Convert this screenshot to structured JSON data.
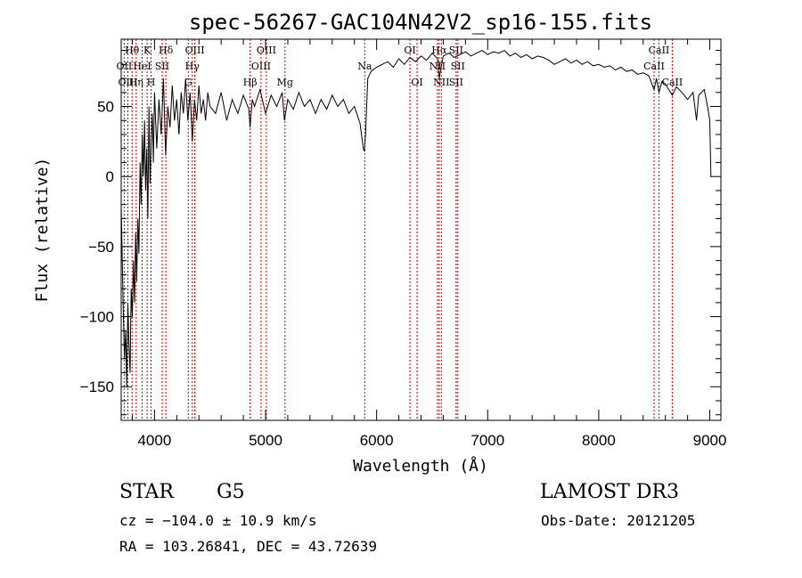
{
  "chart_data": {
    "type": "line",
    "title": "spec-56267-GAC104N42V2_sp16-155.fits",
    "xlabel": "Wavelength (Å)",
    "ylabel": "Flux (relative)",
    "xlim": [
      3700,
      9100
    ],
    "ylim": [
      -174,
      98
    ],
    "x_ticks": [
      4000,
      5000,
      6000,
      7000,
      8000,
      9000
    ],
    "y_ticks": [
      -150,
      -100,
      -50,
      0,
      50
    ],
    "y_tick_labels": [
      "−150",
      "−100",
      "−50",
      "0",
      "50"
    ],
    "series": [
      {
        "name": "flux",
        "points": [
          [
            3700,
            -20
          ],
          [
            3710,
            -60
          ],
          [
            3720,
            -100
          ],
          [
            3730,
            -130
          ],
          [
            3740,
            -110
          ],
          [
            3750,
            -150
          ],
          [
            3760,
            -90
          ],
          [
            3770,
            -120
          ],
          [
            3780,
            -140
          ],
          [
            3790,
            -80
          ],
          [
            3800,
            -100
          ],
          [
            3810,
            -60
          ],
          [
            3820,
            -90
          ],
          [
            3830,
            -40
          ],
          [
            3840,
            -75
          ],
          [
            3850,
            -30
          ],
          [
            3860,
            -55
          ],
          [
            3870,
            10
          ],
          [
            3880,
            -20
          ],
          [
            3890,
            30
          ],
          [
            3900,
            0
          ],
          [
            3910,
            40
          ],
          [
            3920,
            -10
          ],
          [
            3930,
            20
          ],
          [
            3940,
            -30
          ],
          [
            3950,
            50
          ],
          [
            3960,
            -5
          ],
          [
            3970,
            25
          ],
          [
            3980,
            45
          ],
          [
            3990,
            10
          ],
          [
            4000,
            60
          ],
          [
            4020,
            20
          ],
          [
            4040,
            55
          ],
          [
            4060,
            30
          ],
          [
            4080,
            70
          ],
          [
            4100,
            15
          ],
          [
            4120,
            50
          ],
          [
            4140,
            35
          ],
          [
            4160,
            65
          ],
          [
            4180,
            40
          ],
          [
            4200,
            55
          ],
          [
            4220,
            30
          ],
          [
            4240,
            60
          ],
          [
            4260,
            45
          ],
          [
            4280,
            70
          ],
          [
            4300,
            40
          ],
          [
            4320,
            60
          ],
          [
            4340,
            25
          ],
          [
            4360,
            55
          ],
          [
            4380,
            40
          ],
          [
            4400,
            65
          ],
          [
            4420,
            45
          ],
          [
            4440,
            55
          ],
          [
            4460,
            40
          ],
          [
            4480,
            60
          ],
          [
            4500,
            50
          ],
          [
            4550,
            45
          ],
          [
            4600,
            60
          ],
          [
            4650,
            40
          ],
          [
            4700,
            55
          ],
          [
            4750,
            45
          ],
          [
            4800,
            58
          ],
          [
            4850,
            48
          ],
          [
            4860,
            35
          ],
          [
            4880,
            55
          ],
          [
            4900,
            50
          ],
          [
            4950,
            62
          ],
          [
            5000,
            45
          ],
          [
            5050,
            58
          ],
          [
            5100,
            50
          ],
          [
            5150,
            60
          ],
          [
            5170,
            40
          ],
          [
            5200,
            55
          ],
          [
            5250,
            48
          ],
          [
            5300,
            60
          ],
          [
            5350,
            50
          ],
          [
            5400,
            55
          ],
          [
            5450,
            45
          ],
          [
            5500,
            55
          ],
          [
            5550,
            48
          ],
          [
            5600,
            58
          ],
          [
            5650,
            50
          ],
          [
            5700,
            55
          ],
          [
            5750,
            45
          ],
          [
            5800,
            50
          ],
          [
            5850,
            38
          ],
          [
            5880,
            20
          ],
          [
            5890,
            18
          ],
          [
            5900,
            30
          ],
          [
            5920,
            70
          ],
          [
            5950,
            75
          ],
          [
            6000,
            78
          ],
          [
            6050,
            80
          ],
          [
            6100,
            82
          ],
          [
            6150,
            78
          ],
          [
            6200,
            84
          ],
          [
            6250,
            80
          ],
          [
            6300,
            85
          ],
          [
            6350,
            82
          ],
          [
            6400,
            86
          ],
          [
            6450,
            83
          ],
          [
            6500,
            88
          ],
          [
            6550,
            84
          ],
          [
            6563,
            70
          ],
          [
            6600,
            86
          ],
          [
            6650,
            88
          ],
          [
            6700,
            85
          ],
          [
            6750,
            87
          ],
          [
            6800,
            89
          ],
          [
            6850,
            86
          ],
          [
            6900,
            88
          ],
          [
            6950,
            90
          ],
          [
            7000,
            87
          ],
          [
            7050,
            89
          ],
          [
            7100,
            88
          ],
          [
            7150,
            90
          ],
          [
            7200,
            86
          ],
          [
            7250,
            88
          ],
          [
            7300,
            85
          ],
          [
            7350,
            87
          ],
          [
            7400,
            84
          ],
          [
            7450,
            86
          ],
          [
            7500,
            85
          ],
          [
            7550,
            83
          ],
          [
            7600,
            80
          ],
          [
            7650,
            82
          ],
          [
            7700,
            84
          ],
          [
            7750,
            81
          ],
          [
            7800,
            83
          ],
          [
            7850,
            80
          ],
          [
            7900,
            82
          ],
          [
            7950,
            79
          ],
          [
            8000,
            80
          ],
          [
            8050,
            78
          ],
          [
            8100,
            79
          ],
          [
            8150,
            76
          ],
          [
            8200,
            78
          ],
          [
            8250,
            75
          ],
          [
            8300,
            76
          ],
          [
            8350,
            73
          ],
          [
            8400,
            74
          ],
          [
            8450,
            72
          ],
          [
            8498,
            62
          ],
          [
            8520,
            70
          ],
          [
            8542,
            60
          ],
          [
            8570,
            68
          ],
          [
            8600,
            66
          ],
          [
            8662,
            58
          ],
          [
            8700,
            64
          ],
          [
            8750,
            60
          ],
          [
            8800,
            55
          ],
          [
            8850,
            60
          ],
          [
            8880,
            40
          ],
          [
            8900,
            58
          ],
          [
            8950,
            62
          ],
          [
            8980,
            50
          ],
          [
            9000,
            40
          ],
          [
            9010,
            0
          ]
        ]
      }
    ],
    "line_markers": [
      {
        "label": "Hθ",
        "wl": 3798,
        "row": 0
      },
      {
        "label": "OII",
        "wl": 3727,
        "row": 1
      },
      {
        "label": "OIII",
        "wl": 3760,
        "row": 2
      },
      {
        "label": "K",
        "wl": 3934,
        "row": 0
      },
      {
        "label": "HeI",
        "wl": 3889,
        "row": 1
      },
      {
        "label": "Hη",
        "wl": 3835,
        "row": 2
      },
      {
        "label": "Hδ",
        "wl": 4102,
        "row": 0
      },
      {
        "label": "SII",
        "wl": 4069,
        "row": 1
      },
      {
        "label": "H",
        "wl": 3969,
        "row": 2
      },
      {
        "label": "OIII",
        "wl": 4363,
        "row": 0
      },
      {
        "label": "Hγ",
        "wl": 4340,
        "row": 1
      },
      {
        "label": "G",
        "wl": 4304,
        "row": 2
      },
      {
        "label": "OIII",
        "wl": 5007,
        "row": 0
      },
      {
        "label": "OIII",
        "wl": 4959,
        "row": 1
      },
      {
        "label": "Hβ",
        "wl": 4861,
        "row": 2
      },
      {
        "label": "Mg",
        "wl": 5175,
        "row": 2
      },
      {
        "label": "Na",
        "wl": 5893,
        "row": 1
      },
      {
        "label": "OI",
        "wl": 6300,
        "row": 0
      },
      {
        "label": "OI",
        "wl": 6364,
        "row": 2
      },
      {
        "label": "Hα",
        "wl": 6563,
        "row": 0
      },
      {
        "label": "SII",
        "wl": 6716,
        "row": 0
      },
      {
        "label": "NII",
        "wl": 6548,
        "row": 1
      },
      {
        "label": "SII",
        "wl": 6731,
        "row": 1
      },
      {
        "label": "NII",
        "wl": 6583,
        "row": 2
      },
      {
        "label": "SII",
        "wl": 6716,
        "row": 2
      },
      {
        "label": "CaII",
        "wl": 8542,
        "row": 0
      },
      {
        "label": "CaII",
        "wl": 8498,
        "row": 1
      },
      {
        "label": "CaII",
        "wl": 8662,
        "row": 2
      }
    ]
  },
  "info": {
    "object_class": "STAR",
    "subclass": "G5",
    "survey": "LAMOST DR3",
    "cz": "cz = −104.0 ± 10.9 km/s",
    "obs_date": "Obs-Date: 20121205",
    "coords": "RA = 103.26841, DEC =  43.72639"
  }
}
